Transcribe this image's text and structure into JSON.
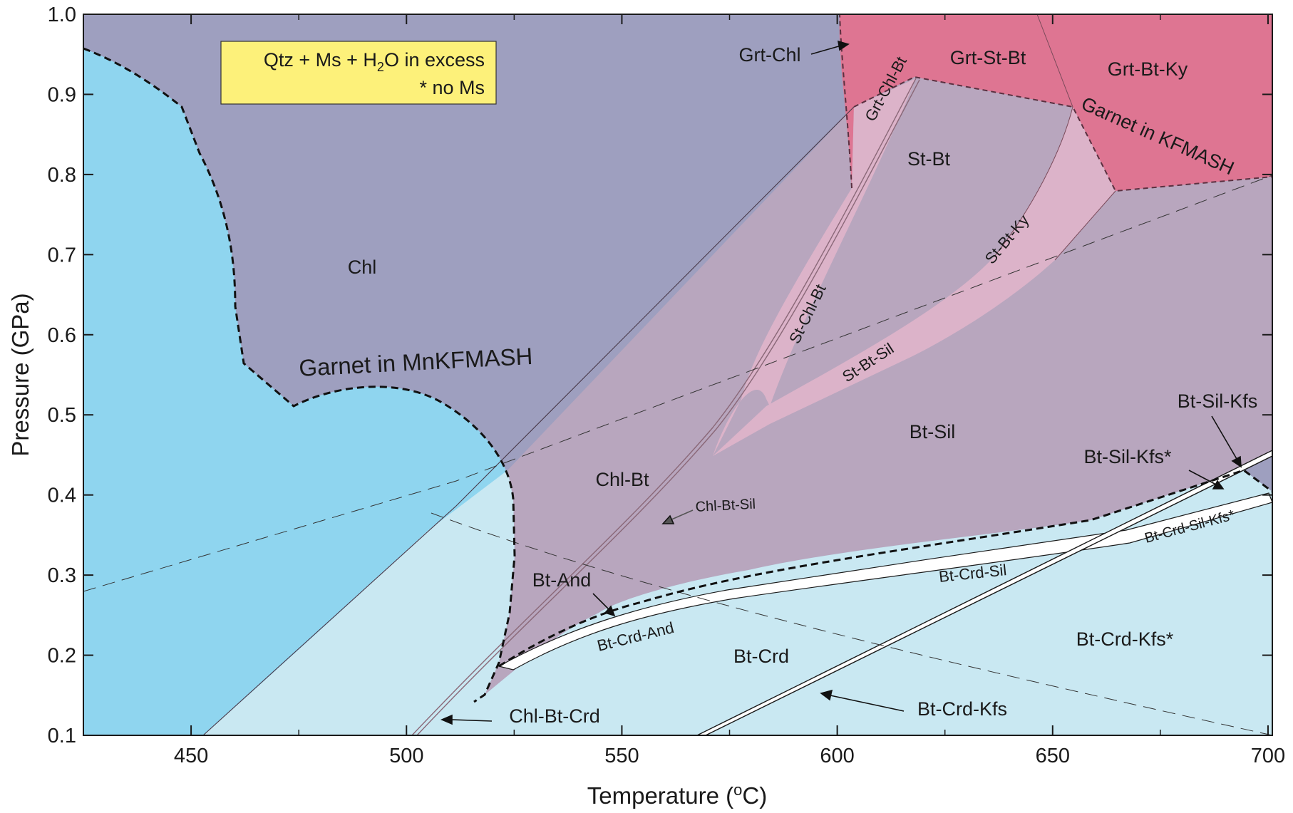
{
  "axes": {
    "x_title": "Temperature (",
    "x_unit_sup": "o",
    "x_unit_tail": "C)",
    "y_title": "Pressure (GPa)",
    "x_ticks": [
      "450",
      "500",
      "550",
      "600",
      "650",
      "700"
    ],
    "y_ticks": [
      "0.1",
      "0.2",
      "0.3",
      "0.4",
      "0.5",
      "0.6",
      "0.7",
      "0.8",
      "0.9",
      "1.0"
    ],
    "xlim": [
      425,
      701
    ],
    "ylim": [
      0.1,
      1.0
    ]
  },
  "legend": {
    "line1_a": "Qtz + Ms + H",
    "line1_sub": "2",
    "line1_b": "O in excess",
    "line2": "* no Ms",
    "fill": "#fdf17a"
  },
  "curves": {
    "mnkfmash": "Garnet in MnKFMASH",
    "kfmash": "Garnet in KFMASH"
  },
  "fields": {
    "chl": "Chl",
    "chl_bt": "Chl-Bt",
    "bt_and": "Bt-And",
    "bt_crd": "Bt-Crd",
    "bt_sil": "Bt-Sil",
    "st_bt": "St-Bt",
    "grt_st_bt": "Grt-St-Bt",
    "grt_bt_ky": "Grt-Bt-Ky",
    "grt_chl_bt": "Grt-Chl-Bt",
    "st_chl_bt": "St-Chl-Bt",
    "st_bt_sil": "St-Bt-Sil",
    "st_bt_ky": "St-Bt-Ky",
    "bt_crd_and": "Bt-Crd-And",
    "bt_crd_sil": "Bt-Crd-Sil",
    "bt_crd_sil_kfs": "Bt-Crd-Sil-Kfs*",
    "bt_crd_kfs_star": "Bt-Crd-Kfs*",
    "chl_bt_sil": "Chl-Bt-Sil"
  },
  "callouts": {
    "grt_chl": "Grt-Chl",
    "chl_bt_crd": "Chl-Bt-Crd",
    "bt_crd_kfs": "Bt-Crd-Kfs",
    "bt_sil_kfs": "Bt-Sil-Kfs",
    "bt_sil_kfs_star": "Bt-Sil-Kfs*"
  },
  "colors": {
    "chl_field": "#9e9fbf",
    "cyan_field": "#8fd5ef",
    "light_cyan_field": "#c9e8f2",
    "mauve_field": "#b8a6be",
    "garnet_field": "#de7592",
    "pink_band": "#dcb3c9",
    "white_band": "#ffffff"
  }
}
